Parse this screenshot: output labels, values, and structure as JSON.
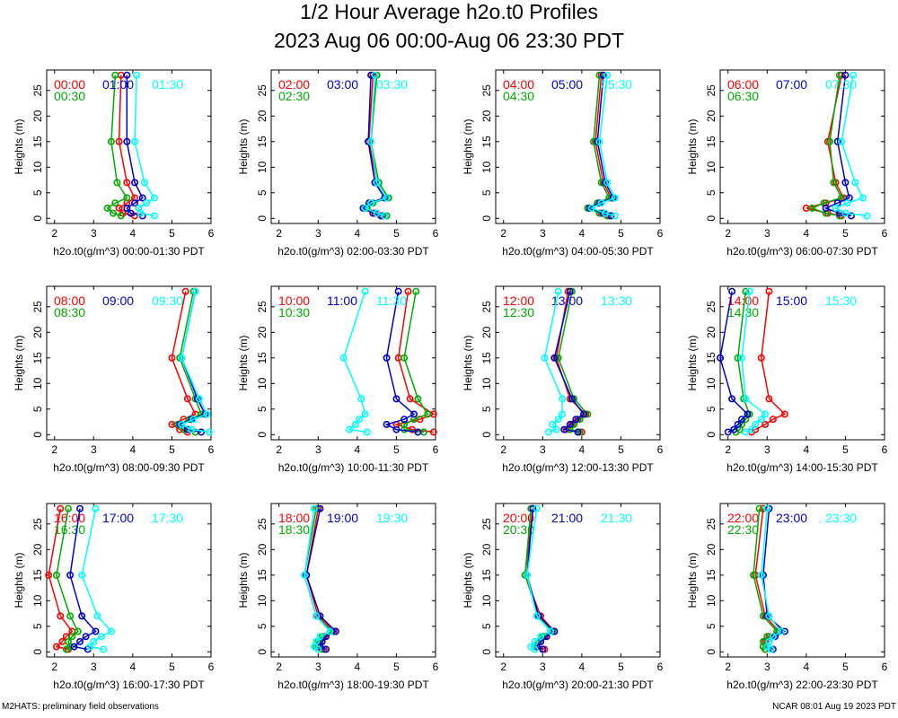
{
  "title_line1": "1/2 Hour Average h2o.t0 Profiles",
  "title_line2": "2023 Aug 06 00:00-Aug 06 23:30 PDT",
  "footer_left": "M2HATS: preliminary field observations",
  "footer_right": "NCAR 08:01 Aug 19 2023 PDT",
  "colors": {
    "series1": "#ff0000",
    "series2": "#00aa00",
    "series3": "#0000cc",
    "series4": "#00ffff",
    "axis": "#000000"
  },
  "chart_data": [
    {
      "type": "line",
      "title": "",
      "xlabel": "h2o.t0(g/m^3) 00:00-01:30 PDT",
      "ylabel": "Heights (m)",
      "xlim": [
        1.8,
        6
      ],
      "ylim": [
        -1,
        29
      ],
      "xticks": [
        2,
        3,
        4,
        5,
        6
      ],
      "yticks": [
        0,
        5,
        10,
        15,
        20,
        25
      ],
      "heights": [
        0.5,
        1,
        2,
        3,
        4,
        7,
        15,
        28
      ],
      "series": [
        {
          "name": "00:00",
          "values": [
            4.05,
            3.75,
            3.65,
            3.85,
            4.05,
            3.85,
            3.65,
            3.7
          ]
        },
        {
          "name": "00:30",
          "values": [
            3.7,
            3.5,
            3.35,
            3.55,
            3.85,
            3.6,
            3.45,
            3.55
          ]
        },
        {
          "name": "01:00",
          "values": [
            4.25,
            3.95,
            3.85,
            4.05,
            4.25,
            4.05,
            3.85,
            3.85
          ]
        },
        {
          "name": "01:30",
          "values": [
            4.55,
            4.2,
            4.15,
            4.35,
            4.55,
            4.3,
            4.05,
            4.1
          ]
        }
      ]
    },
    {
      "type": "line",
      "title": "",
      "xlabel": "h2o.t0(g/m^3) 02:00-03:30 PDT",
      "ylabel": "Heights (m)",
      "xlim": [
        1.8,
        6
      ],
      "ylim": [
        -1,
        29
      ],
      "xticks": [
        2,
        3,
        4,
        5,
        6
      ],
      "yticks": [
        0,
        5,
        10,
        15,
        20,
        25
      ],
      "heights": [
        0.5,
        1,
        2,
        3,
        4,
        7,
        15,
        28
      ],
      "series": [
        {
          "name": "02:00",
          "values": [
            4.65,
            4.45,
            4.2,
            4.35,
            4.75,
            4.5,
            4.3,
            4.4
          ]
        },
        {
          "name": "02:30",
          "values": [
            4.75,
            4.5,
            4.25,
            4.4,
            4.8,
            4.55,
            4.35,
            4.5
          ]
        },
        {
          "name": "03:00",
          "values": [
            4.6,
            4.4,
            4.15,
            4.3,
            4.7,
            4.45,
            4.28,
            4.35
          ]
        },
        {
          "name": "03:30",
          "values": [
            4.7,
            4.5,
            4.2,
            4.35,
            4.75,
            4.5,
            4.35,
            4.45
          ]
        }
      ]
    },
    {
      "type": "line",
      "title": "",
      "xlabel": "h2o.t0(g/m^3) 04:00-05:30 PDT",
      "ylabel": "Heights (m)",
      "xlim": [
        1.8,
        6
      ],
      "ylim": [
        -1,
        29
      ],
      "xticks": [
        2,
        3,
        4,
        5,
        6
      ],
      "yticks": [
        0,
        5,
        10,
        15,
        20,
        25
      ],
      "heights": [
        0.5,
        1,
        2,
        3,
        4,
        7,
        15,
        28
      ],
      "series": [
        {
          "name": "04:00",
          "values": [
            4.7,
            4.5,
            4.2,
            4.45,
            4.75,
            4.55,
            4.35,
            4.5
          ]
        },
        {
          "name": "04:30",
          "values": [
            4.65,
            4.45,
            4.15,
            4.4,
            4.7,
            4.5,
            4.3,
            4.45
          ]
        },
        {
          "name": "05:00",
          "values": [
            4.75,
            4.55,
            4.2,
            4.45,
            4.8,
            4.6,
            4.4,
            4.55
          ]
        },
        {
          "name": "05:30",
          "values": [
            4.85,
            4.6,
            4.25,
            4.5,
            4.85,
            4.65,
            4.45,
            4.65
          ]
        }
      ]
    },
    {
      "type": "line",
      "title": "",
      "xlabel": "h2o.t0(g/m^3) 06:00-07:30 PDT",
      "ylabel": "Heights (m)",
      "xlim": [
        1.8,
        6
      ],
      "ylim": [
        -1,
        29
      ],
      "xticks": [
        2,
        3,
        4,
        5,
        6
      ],
      "yticks": [
        0,
        5,
        10,
        15,
        20,
        25
      ],
      "heights": [
        0.5,
        1,
        2,
        3,
        4,
        7,
        15,
        28
      ],
      "series": [
        {
          "name": "06:00",
          "values": [
            4.9,
            4.55,
            4.0,
            4.5,
            4.95,
            4.75,
            4.55,
            4.9
          ]
        },
        {
          "name": "06:30",
          "values": [
            4.85,
            4.5,
            4.15,
            4.45,
            4.9,
            4.7,
            4.6,
            4.85
          ]
        },
        {
          "name": "07:00",
          "values": [
            5.15,
            4.85,
            4.5,
            4.8,
            5.1,
            5.0,
            4.8,
            5.0
          ]
        },
        {
          "name": "07:30",
          "values": [
            5.55,
            5.0,
            4.75,
            5.05,
            5.45,
            5.25,
            4.9,
            5.2
          ]
        }
      ]
    },
    {
      "type": "line",
      "title": "",
      "xlabel": "h2o.t0(g/m^3) 08:00-09:30 PDT",
      "ylabel": "Heights (m)",
      "xlim": [
        1.8,
        6
      ],
      "ylim": [
        -1,
        29
      ],
      "xticks": [
        2,
        3,
        4,
        5,
        6
      ],
      "yticks": [
        0,
        5,
        10,
        15,
        20,
        25
      ],
      "heights": [
        0.5,
        1,
        2,
        3,
        4,
        7,
        15,
        28
      ],
      "series": [
        {
          "name": "08:00",
          "values": [
            5.4,
            5.2,
            5.0,
            5.3,
            5.6,
            5.4,
            5.0,
            5.35
          ]
        },
        {
          "name": "08:30",
          "values": [
            5.6,
            5.3,
            5.15,
            5.45,
            5.75,
            5.6,
            5.2,
            5.55
          ]
        },
        {
          "name": "09:00",
          "values": [
            5.75,
            5.4,
            5.2,
            5.5,
            5.85,
            5.65,
            5.25,
            5.6
          ]
        },
        {
          "name": "09:30",
          "values": [
            5.95,
            5.5,
            5.25,
            5.55,
            5.9,
            5.7,
            5.25,
            5.6
          ]
        }
      ]
    },
    {
      "type": "line",
      "title": "",
      "xlabel": "h2o.t0(g/m^3) 10:00-11:30 PDT",
      "ylabel": "Heights (m)",
      "xlim": [
        1.8,
        6
      ],
      "ylim": [
        -1,
        29
      ],
      "xticks": [
        2,
        3,
        4,
        5,
        6
      ],
      "yticks": [
        0,
        5,
        10,
        15,
        20,
        25
      ],
      "heights": [
        0.5,
        1,
        2,
        3,
        4,
        7,
        15,
        28
      ],
      "series": [
        {
          "name": "10:00",
          "values": [
            5.95,
            5.4,
            5.0,
            5.6,
            5.95,
            5.35,
            5.05,
            5.3
          ]
        },
        {
          "name": "10:30",
          "values": [
            5.7,
            5.2,
            5.2,
            5.45,
            5.8,
            5.55,
            5.2,
            5.5
          ]
        },
        {
          "name": "11:00",
          "values": [
            5.55,
            5.0,
            4.75,
            5.2,
            5.45,
            5.0,
            4.75,
            5.05
          ]
        },
        {
          "name": "11:30",
          "values": [
            4.25,
            3.8,
            3.95,
            4.05,
            4.2,
            4.1,
            3.65,
            4.2
          ]
        }
      ]
    },
    {
      "type": "line",
      "title": "",
      "xlabel": "h2o.t0(g/m^3) 12:00-13:30 PDT",
      "ylabel": "Heights (m)",
      "xlim": [
        1.8,
        6
      ],
      "ylim": [
        -1,
        29
      ],
      "xticks": [
        2,
        3,
        4,
        5,
        6
      ],
      "yticks": [
        0,
        5,
        10,
        15,
        20,
        25
      ],
      "heights": [
        0.5,
        1,
        2,
        3,
        4,
        7,
        15,
        28
      ],
      "series": [
        {
          "name": "12:00",
          "values": [
            4.0,
            3.6,
            3.75,
            3.9,
            4.1,
            3.7,
            3.35,
            3.65
          ]
        },
        {
          "name": "12:30",
          "values": [
            3.95,
            3.7,
            3.8,
            3.95,
            4.15,
            3.8,
            3.4,
            3.75
          ]
        },
        {
          "name": "13:00",
          "values": [
            3.9,
            3.55,
            3.7,
            3.85,
            4.05,
            3.75,
            3.3,
            3.7
          ]
        },
        {
          "name": "13:30",
          "values": [
            3.15,
            3.35,
            3.25,
            3.4,
            3.5,
            3.5,
            3.05,
            3.4
          ]
        }
      ]
    },
    {
      "type": "line",
      "title": "",
      "xlabel": "h2o.t0(g/m^3) 14:00-15:30 PDT",
      "ylabel": "Heights (m)",
      "xlim": [
        1.8,
        6
      ],
      "ylim": [
        -1,
        29
      ],
      "xticks": [
        2,
        3,
        4,
        5,
        6
      ],
      "yticks": [
        0,
        5,
        10,
        15,
        20,
        25
      ],
      "heights": [
        0.5,
        1,
        2,
        3,
        4,
        7,
        15,
        28
      ],
      "series": [
        {
          "name": "14:00",
          "values": [
            2.6,
            2.7,
            2.95,
            3.15,
            3.45,
            3.05,
            2.85,
            3.05
          ]
        },
        {
          "name": "14:30",
          "values": [
            2.2,
            2.3,
            2.35,
            2.45,
            2.55,
            2.4,
            2.25,
            2.45
          ]
        },
        {
          "name": "15:00",
          "values": [
            2.0,
            2.15,
            2.25,
            2.35,
            2.5,
            2.1,
            1.8,
            2.1
          ]
        },
        {
          "name": "15:30",
          "values": [
            2.45,
            2.6,
            2.7,
            2.85,
            2.95,
            2.45,
            2.35,
            2.55
          ]
        }
      ]
    },
    {
      "type": "line",
      "title": "",
      "xlabel": "h2o.t0(g/m^3) 16:00-17:30 PDT",
      "ylabel": "Heights (m)",
      "xlim": [
        1.8,
        6
      ],
      "ylim": [
        -1,
        29
      ],
      "xticks": [
        2,
        3,
        4,
        5,
        6
      ],
      "yticks": [
        0,
        5,
        10,
        15,
        20,
        25
      ],
      "heights": [
        0.5,
        1,
        2,
        3,
        4,
        7,
        15,
        28
      ],
      "series": [
        {
          "name": "16:00",
          "values": [
            2.35,
            2.05,
            2.2,
            2.3,
            2.45,
            2.15,
            1.85,
            2.15
          ]
        },
        {
          "name": "16:30",
          "values": [
            2.3,
            2.4,
            2.35,
            2.45,
            2.6,
            2.4,
            2.05,
            2.35
          ]
        },
        {
          "name": "17:00",
          "values": [
            2.85,
            2.5,
            2.65,
            2.8,
            3.05,
            2.7,
            2.4,
            2.65
          ]
        },
        {
          "name": "17:30",
          "values": [
            3.25,
            2.9,
            3.0,
            3.2,
            3.45,
            3.1,
            2.7,
            3.05
          ]
        }
      ]
    },
    {
      "type": "line",
      "title": "",
      "xlabel": "h2o.t0(g/m^3) 18:00-19:30 PDT",
      "ylabel": "Heights (m)",
      "xlim": [
        1.8,
        6
      ],
      "ylim": [
        -1,
        29
      ],
      "xticks": [
        2,
        3,
        4,
        5,
        6
      ],
      "yticks": [
        0,
        5,
        10,
        15,
        20,
        25
      ],
      "heights": [
        0.5,
        1,
        2,
        3,
        4,
        7,
        15,
        28
      ],
      "series": [
        {
          "name": "18:00",
          "values": [
            3.15,
            3.0,
            3.05,
            3.15,
            3.4,
            3.0,
            2.7,
            3.0
          ]
        },
        {
          "name": "18:30",
          "values": [
            3.1,
            2.95,
            3.0,
            3.1,
            3.35,
            2.95,
            2.65,
            2.95
          ]
        },
        {
          "name": "19:00",
          "values": [
            3.2,
            3.05,
            3.1,
            3.2,
            3.45,
            3.05,
            2.7,
            3.05
          ]
        },
        {
          "name": "19:30",
          "values": [
            3.0,
            2.9,
            2.95,
            3.05,
            3.3,
            2.95,
            2.65,
            2.9
          ]
        }
      ]
    },
    {
      "type": "line",
      "title": "",
      "xlabel": "h2o.t0(g/m^3) 20:00-21:30 PDT",
      "ylabel": "Heights (m)",
      "xlim": [
        1.8,
        6
      ],
      "ylim": [
        -1,
        29
      ],
      "xticks": [
        2,
        3,
        4,
        5,
        6
      ],
      "yticks": [
        0,
        5,
        10,
        15,
        20,
        25
      ],
      "heights": [
        0.5,
        1,
        2,
        3,
        4,
        7,
        15,
        28
      ],
      "series": [
        {
          "name": "20:00",
          "values": [
            3.05,
            2.85,
            2.95,
            3.05,
            3.3,
            2.95,
            2.55,
            2.75
          ]
        },
        {
          "name": "20:30",
          "values": [
            3.0,
            2.8,
            2.9,
            3.0,
            3.25,
            2.9,
            2.55,
            2.7
          ]
        },
        {
          "name": "21:00",
          "values": [
            3.0,
            2.85,
            2.95,
            3.1,
            3.3,
            2.9,
            2.6,
            2.75
          ]
        },
        {
          "name": "21:30",
          "values": [
            2.8,
            2.7,
            2.8,
            2.95,
            3.2,
            2.85,
            2.6,
            2.85
          ]
        }
      ]
    },
    {
      "type": "line",
      "title": "",
      "xlabel": "h2o.t0(g/m^3) 22:00-23:30 PDT",
      "ylabel": "Heights (m)",
      "xlim": [
        1.8,
        6
      ],
      "ylim": [
        -1,
        29
      ],
      "xticks": [
        2,
        3,
        4,
        5,
        6
      ],
      "yticks": [
        0,
        5,
        10,
        15,
        20,
        25
      ],
      "heights": [
        0.5,
        1,
        2,
        3,
        4,
        7,
        15,
        28
      ],
      "series": [
        {
          "name": "22:00",
          "values": [
            2.95,
            2.9,
            2.95,
            3.05,
            3.3,
            2.95,
            2.7,
            2.9
          ]
        },
        {
          "name": "22:30",
          "values": [
            2.95,
            2.9,
            2.9,
            3.0,
            3.25,
            2.9,
            2.65,
            2.8
          ]
        },
        {
          "name": "23:00",
          "values": [
            3.15,
            3.0,
            3.05,
            3.2,
            3.45,
            3.0,
            2.9,
            3.05
          ]
        },
        {
          "name": "23:30",
          "values": [
            3.1,
            3.0,
            3.05,
            3.15,
            3.35,
            3.05,
            2.85,
            3.0
          ]
        }
      ]
    }
  ]
}
